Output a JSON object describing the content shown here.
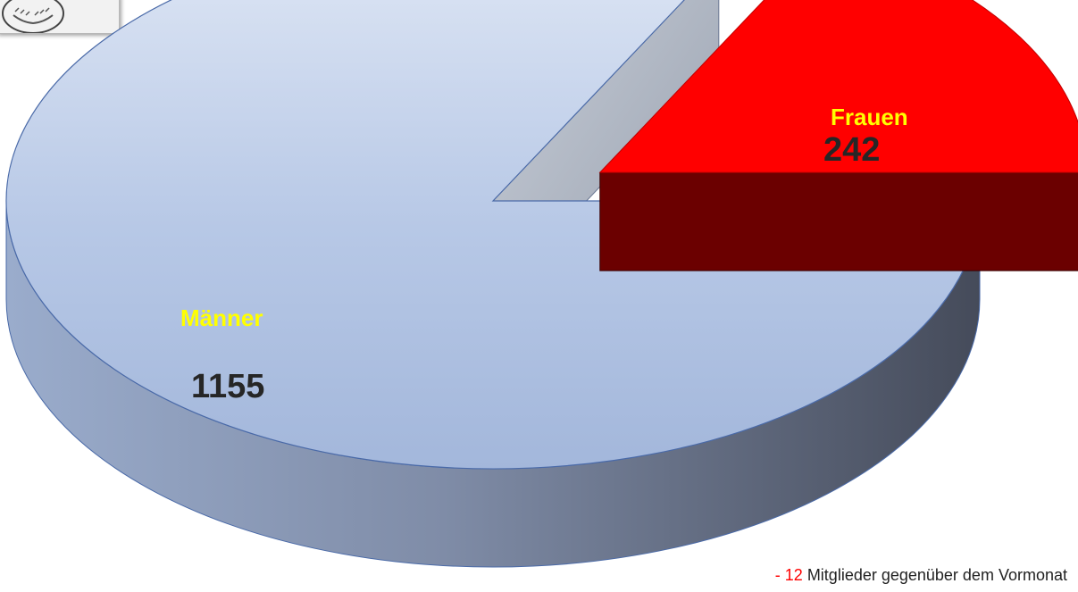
{
  "chart_data": {
    "type": "pie",
    "style": "3d-exploded",
    "slices": [
      {
        "label": "Männer",
        "value": 1155,
        "color": "#b4c7e7",
        "label_color": "#ffff00",
        "value_color": "#262626"
      },
      {
        "label": "Frauen",
        "value": 242,
        "color": "#ff0000",
        "label_color": "#ffff00",
        "value_color": "#262626"
      }
    ],
    "exploded": [
      "Frauen"
    ]
  },
  "footnote": {
    "delta": "- 12",
    "text": " Mitglieder gegenüber dem Vormonat",
    "delta_color": "#ff0000"
  },
  "logo": {
    "icon": "club-emblem-icon"
  }
}
